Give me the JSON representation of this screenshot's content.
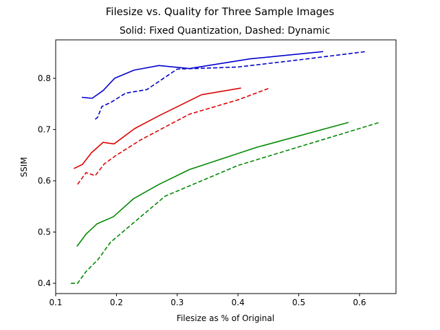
{
  "chart_data": {
    "type": "line",
    "title": "Filesize vs. Quality for Three Sample Images",
    "subtitle": "Solid: Fixed Quantization, Dashed: Dynamic",
    "xlabel": "Filesize as % of Original",
    "ylabel": "SSIM",
    "xlim": [
      0.1,
      0.66
    ],
    "ylim": [
      0.38,
      0.875
    ],
    "xticks": [
      0.1,
      0.2,
      0.3,
      0.4,
      0.5,
      0.6
    ],
    "xtick_labels": [
      "0.1",
      "0.2",
      "0.3",
      "0.4",
      "0.5",
      "0.6"
    ],
    "yticks": [
      0.4,
      0.5,
      0.6,
      0.7,
      0.8
    ],
    "ytick_labels": [
      "0.4",
      "0.5",
      "0.6",
      "0.7",
      "0.8"
    ],
    "grid": false,
    "series": [
      {
        "color": "#0000cc",
        "style": "solid",
        "points": [
          [
            0.143,
            0.763
          ],
          [
            0.16,
            0.761
          ],
          [
            0.178,
            0.776
          ],
          [
            0.197,
            0.8
          ],
          [
            0.229,
            0.816
          ],
          [
            0.27,
            0.825
          ],
          [
            0.32,
            0.819
          ],
          [
            0.42,
            0.838
          ],
          [
            0.54,
            0.852
          ]
        ]
      },
      {
        "color": "#0000cc",
        "style": "dashed",
        "points": [
          [
            0.165,
            0.72
          ],
          [
            0.169,
            0.724
          ],
          [
            0.176,
            0.745
          ],
          [
            0.191,
            0.753
          ],
          [
            0.215,
            0.771
          ],
          [
            0.25,
            0.778
          ],
          [
            0.3,
            0.818
          ],
          [
            0.4,
            0.822
          ],
          [
            0.5,
            0.836
          ],
          [
            0.61,
            0.852
          ]
        ]
      },
      {
        "color": "#dd0000",
        "style": "solid",
        "points": [
          [
            0.13,
            0.624
          ],
          [
            0.144,
            0.632
          ],
          [
            0.159,
            0.655
          ],
          [
            0.178,
            0.675
          ],
          [
            0.196,
            0.672
          ],
          [
            0.23,
            0.702
          ],
          [
            0.27,
            0.727
          ],
          [
            0.34,
            0.768
          ],
          [
            0.405,
            0.781
          ]
        ]
      },
      {
        "color": "#dd0000",
        "style": "dashed",
        "points": [
          [
            0.136,
            0.593
          ],
          [
            0.15,
            0.616
          ],
          [
            0.165,
            0.61
          ],
          [
            0.18,
            0.633
          ],
          [
            0.2,
            0.65
          ],
          [
            0.24,
            0.68
          ],
          [
            0.32,
            0.73
          ],
          [
            0.4,
            0.758
          ],
          [
            0.452,
            0.781
          ]
        ]
      },
      {
        "color": "#008800",
        "style": "solid",
        "points": [
          [
            0.135,
            0.472
          ],
          [
            0.15,
            0.496
          ],
          [
            0.168,
            0.516
          ],
          [
            0.195,
            0.53
          ],
          [
            0.228,
            0.565
          ],
          [
            0.27,
            0.593
          ],
          [
            0.32,
            0.622
          ],
          [
            0.43,
            0.665
          ],
          [
            0.582,
            0.714
          ]
        ]
      },
      {
        "color": "#008800",
        "style": "dashed",
        "points": [
          [
            0.125,
            0.4
          ],
          [
            0.136,
            0.4
          ],
          [
            0.15,
            0.423
          ],
          [
            0.17,
            0.447
          ],
          [
            0.19,
            0.48
          ],
          [
            0.22,
            0.51
          ],
          [
            0.28,
            0.57
          ],
          [
            0.4,
            0.63
          ],
          [
            0.633,
            0.714
          ]
        ]
      }
    ]
  }
}
